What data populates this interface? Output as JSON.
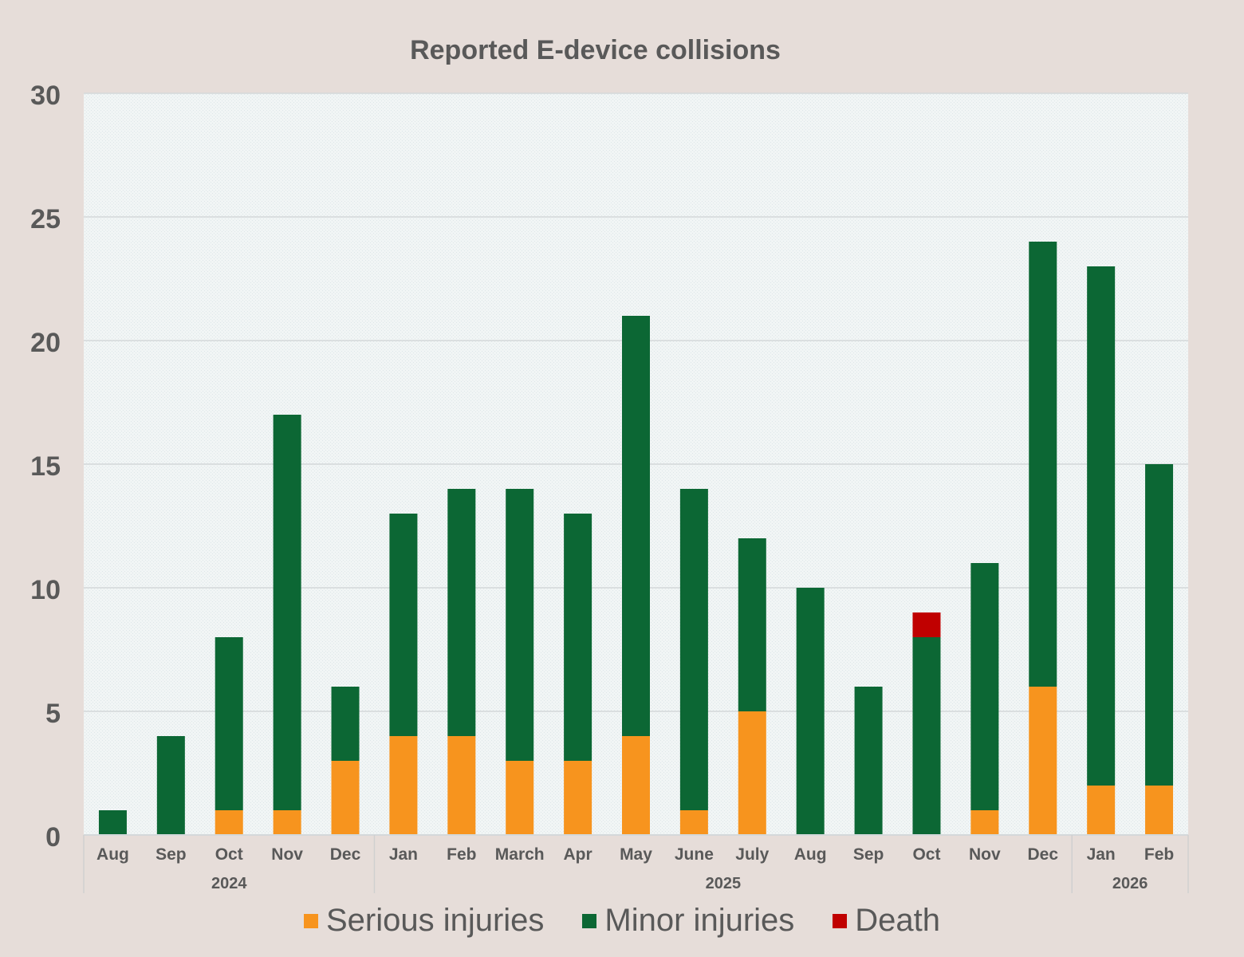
{
  "chart_data": {
    "type": "bar",
    "stacked": true,
    "title": "Reported E-device collisions",
    "categories": [
      "Aug",
      "Sep",
      "Oct",
      "Nov",
      "Dec",
      "Jan",
      "Feb",
      "March",
      "Apr",
      "May",
      "June",
      "July",
      "Aug",
      "Sep",
      "Oct",
      "Nov",
      "Dec",
      "Jan",
      "Feb"
    ],
    "year_groups": [
      {
        "label": "2024",
        "count": 5
      },
      {
        "label": "2025",
        "count": 12
      },
      {
        "label": "2026",
        "count": 2
      }
    ],
    "series": [
      {
        "name": "Serious injuries",
        "color": "#f7941e",
        "values": [
          0,
          0,
          1,
          1,
          3,
          4,
          4,
          3,
          3,
          4,
          1,
          5,
          0,
          0,
          0,
          1,
          6,
          2,
          2
        ]
      },
      {
        "name": "Minor injuries",
        "color": "#0c6734",
        "values": [
          1,
          4,
          7,
          16,
          3,
          9,
          10,
          11,
          10,
          17,
          13,
          7,
          10,
          6,
          8,
          10,
          18,
          21,
          13
        ]
      },
      {
        "name": "Death",
        "color": "#c00000",
        "values": [
          0,
          0,
          0,
          0,
          0,
          0,
          0,
          0,
          0,
          0,
          0,
          0,
          0,
          0,
          1,
          0,
          0,
          0,
          0
        ]
      }
    ],
    "ylim": [
      0,
      30
    ],
    "yticks": [
      0,
      5,
      10,
      15,
      20,
      25,
      30
    ],
    "grid": true,
    "legend": "bottom"
  }
}
